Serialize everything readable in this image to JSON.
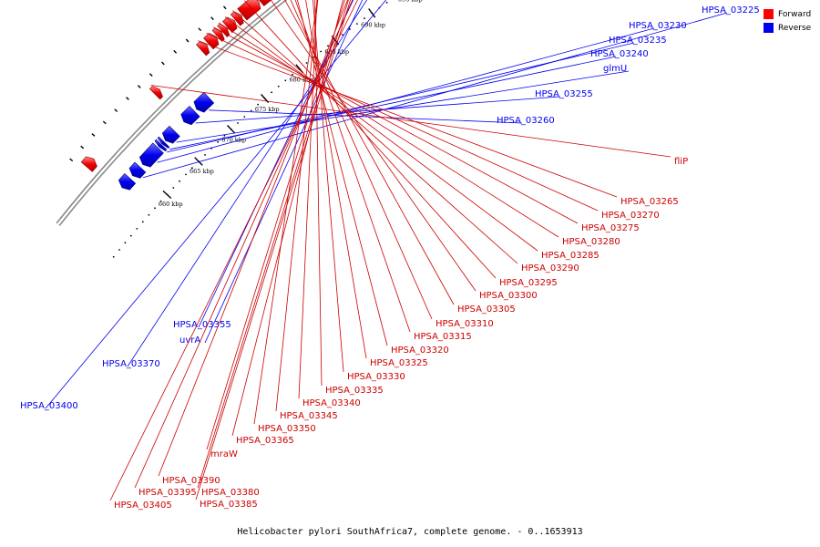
{
  "colors": {
    "forward": "#ff0000",
    "reverse": "#0000ee",
    "backbone": "#8a8a8a",
    "tick": "#000000"
  },
  "legend": {
    "forward_label": "Forward",
    "reverse_label": "Reverse"
  },
  "caption": "Helicobacter pylori SouthAfrica7, complete genome. - 0..1653913",
  "scale_labels": [
    {
      "text": "660 kbp",
      "pos": 659.99
    },
    {
      "text": "665 kbp",
      "pos": 665.0
    },
    {
      "text": "670 kbp",
      "pos": 670.0
    },
    {
      "text": "675 kbp",
      "pos": 675.0
    },
    {
      "text": "680 kbp",
      "pos": 680.0
    },
    {
      "text": "685 kbp",
      "pos": 685.0
    },
    {
      "text": "690 kbp",
      "pos": 690.0
    },
    {
      "text": "695 kbp",
      "pos": 695.0
    },
    {
      "text": "700 kbp",
      "pos": 700.0
    }
  ],
  "reverse_genes": [
    {
      "label": "HPSA_03225",
      "start": 659.0,
      "end": 660.2
    },
    {
      "label": "HPSA_03230",
      "start": 660.6,
      "end": 663.0
    },
    {
      "label": "HPSA_03235",
      "start": 663.15,
      "end": 663.5
    },
    {
      "label": "HPSA_03240",
      "start": 663.6,
      "end": 663.9
    },
    {
      "label": "glmU",
      "start": 664.1,
      "end": 665.5
    },
    {
      "label": "HPSA_03255",
      "start": 666.9,
      "end": 668.5
    },
    {
      "label": "HPSA_03260",
      "start": 668.8,
      "end": 670.6
    },
    {
      "label": "HPSA_03355",
      "start": 690.5,
      "end": 690.8
    },
    {
      "label": "uvrA",
      "start": 690.9,
      "end": 693.8
    },
    {
      "label": "HPSA_03370",
      "start": 694.3,
      "end": 694.6
    },
    {
      "label": "HPSA_03400",
      "start": 701.1,
      "end": 701.4
    },
    {
      "label": "",
      "start": 701.8,
      "end": 703.1
    },
    {
      "label": "",
      "start": 703.3,
      "end": 704.6
    },
    {
      "label": "",
      "start": 657.3,
      "end": 658.6
    },
    {
      "label": "",
      "start": 704.8,
      "end": 705.6
    }
  ],
  "forward_genes": [
    {
      "label": "fliP",
      "start": 666.8,
      "end": 667.5
    },
    {
      "label": "HPSA_03265",
      "start": 673.4,
      "end": 674.2
    },
    {
      "label": "HPSA_03270",
      "start": 674.4,
      "end": 675.5
    },
    {
      "label": "HPSA_03275",
      "start": 675.6,
      "end": 676.2
    },
    {
      "label": "HPSA_03280",
      "start": 676.3,
      "end": 676.9
    },
    {
      "label": "HPSA_03285",
      "start": 677.0,
      "end": 678.0
    },
    {
      "label": "HPSA_03290",
      "start": 678.1,
      "end": 678.9
    },
    {
      "label": "HPSA_03295",
      "start": 679.0,
      "end": 681.2
    },
    {
      "label": "HPSA_03300",
      "start": 681.3,
      "end": 683.4
    },
    {
      "label": "HPSA_03305",
      "start": 683.5,
      "end": 684.1
    },
    {
      "label": "HPSA_03310",
      "start": 684.2,
      "end": 685.0
    },
    {
      "label": "HPSA_03315",
      "start": 685.1,
      "end": 685.6
    },
    {
      "label": "HPSA_03320",
      "start": 685.7,
      "end": 686.0
    },
    {
      "label": "HPSA_03325",
      "start": 686.1,
      "end": 688.2
    },
    {
      "label": "HPSA_03330",
      "start": 688.3,
      "end": 688.6
    },
    {
      "label": "HPSA_03335",
      "start": 688.7,
      "end": 689.5
    },
    {
      "label": "HPSA_03340",
      "start": 689.6,
      "end": 690.0
    },
    {
      "label": "HPSA_03345",
      "start": 690.2,
      "end": 690.5
    },
    {
      "label": "HPSA_03350",
      "start": 690.6,
      "end": 690.8
    },
    {
      "label": "HPSA_03365",
      "start": 695.0,
      "end": 696.0
    },
    {
      "label": "mraW",
      "start": 696.1,
      "end": 696.9
    },
    {
      "label": "HPSA_03380",
      "start": 697.0,
      "end": 697.2
    },
    {
      "label": "HPSA_03385",
      "start": 697.3,
      "end": 697.5
    },
    {
      "label": "HPSA_03390",
      "start": 697.9,
      "end": 698.8
    },
    {
      "label": "HPSA_03395",
      "start": 699.0,
      "end": 701.0
    },
    {
      "label": "HPSA_03405",
      "start": 701.2,
      "end": 702.4
    },
    {
      "label": "",
      "start": 702.6,
      "end": 703.2
    },
    {
      "label": "",
      "start": 656.5,
      "end": 657.6
    }
  ]
}
